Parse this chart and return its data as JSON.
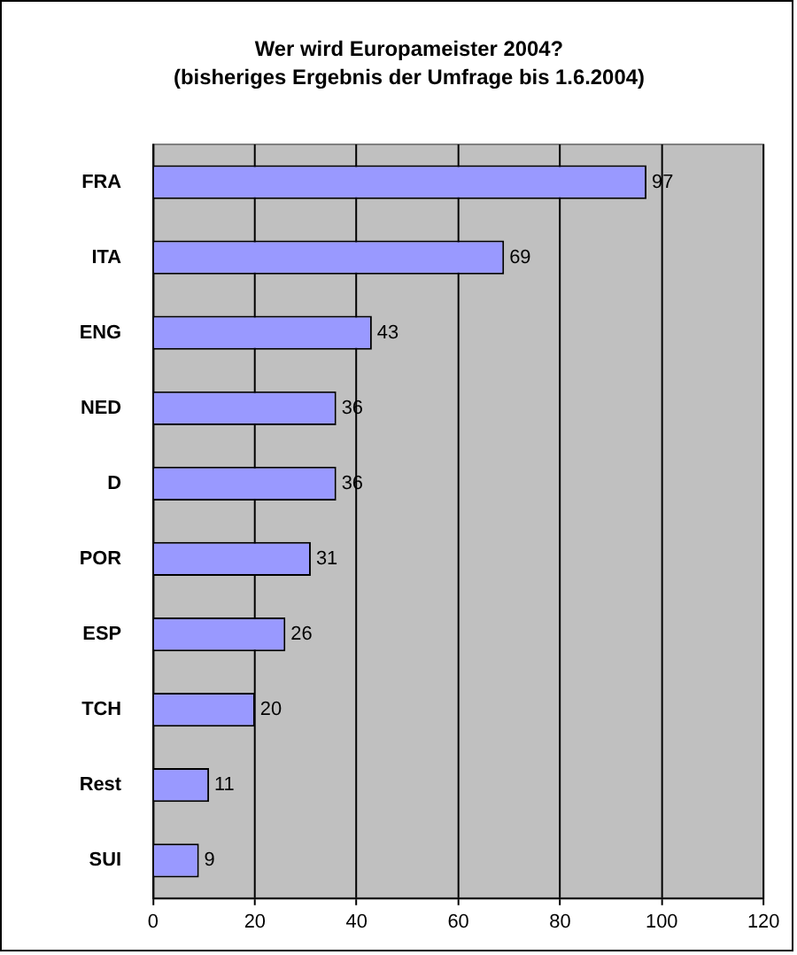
{
  "chart_data": {
    "type": "bar",
    "orientation": "horizontal",
    "title": "Wer wird Europameister 2004?",
    "subtitle": "(bisheriges Ergebnis der Umfrage bis 1.6.2004)",
    "categories": [
      "FRA",
      "ITA",
      "ENG",
      "NED",
      "D",
      "POR",
      "ESP",
      "TCH",
      "Rest",
      "SUI"
    ],
    "values": [
      97,
      69,
      43,
      36,
      36,
      31,
      26,
      20,
      11,
      9
    ],
    "color": "#9999ff",
    "xlim": [
      0,
      120
    ],
    "xticks": [
      0,
      20,
      40,
      60,
      80,
      100,
      120
    ],
    "grid": "x",
    "data_labels": true,
    "legend": false
  }
}
